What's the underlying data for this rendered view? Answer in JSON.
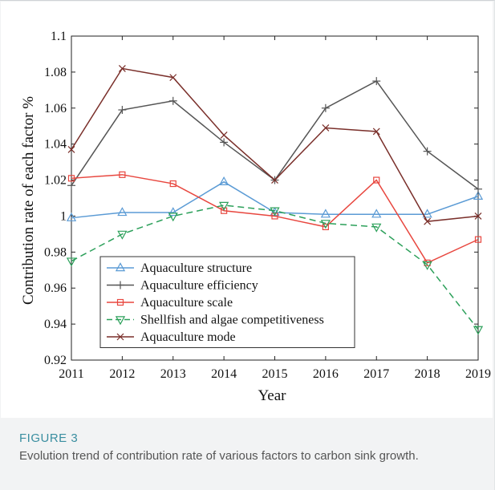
{
  "figure": {
    "label": "FIGURE 3",
    "caption": "Evolution trend of contribution rate of various factors to carbon sink growth."
  },
  "chart_data": {
    "type": "line",
    "xlabel": "Year",
    "ylabel": "Contribution rate of each factor %",
    "x": [
      2011,
      2012,
      2013,
      2014,
      2015,
      2016,
      2017,
      2018,
      2019
    ],
    "xlim": [
      2011,
      2019
    ],
    "ylim": [
      0.92,
      1.1
    ],
    "yticks": [
      0.92,
      0.94,
      0.96,
      0.98,
      1,
      1.02,
      1.04,
      1.06,
      1.08,
      1.1
    ],
    "ytick_labels": [
      "0.92",
      "0.94",
      "0.96",
      "0.98",
      "1",
      "1.02",
      "1.04",
      "1.06",
      "1.08",
      "1.1"
    ],
    "xtick_labels": [
      "2011",
      "2012",
      "2013",
      "2014",
      "2015",
      "2016",
      "2017",
      "2018",
      "2019"
    ],
    "grid": false,
    "legend_position": "bottom-left",
    "series": [
      {
        "name": "Aquaculture structure",
        "color": "#5b9bd5",
        "marker": "triangle-up",
        "dash": "solid",
        "values": [
          0.999,
          1.002,
          1.002,
          1.019,
          1.002,
          1.001,
          1.001,
          1.001,
          1.011
        ]
      },
      {
        "name": "Aquaculture efficiency",
        "color": "#555555",
        "marker": "plus",
        "dash": "solid",
        "values": [
          1.017,
          1.059,
          1.064,
          1.041,
          1.02,
          1.06,
          1.075,
          1.036,
          1.015
        ]
      },
      {
        "name": "Aquaculture scale",
        "color": "#e8473f",
        "marker": "square",
        "dash": "solid",
        "values": [
          1.021,
          1.023,
          1.018,
          1.003,
          1.0,
          0.994,
          1.02,
          0.974,
          0.987
        ]
      },
      {
        "name": "Shellfish and algae competitiveness",
        "color": "#2ca05a",
        "marker": "triangle-down",
        "dash": "dashed",
        "values": [
          0.975,
          0.99,
          1.0,
          1.006,
          1.003,
          0.996,
          0.994,
          0.973,
          0.937
        ]
      },
      {
        "name": "Aquaculture mode",
        "color": "#7a2f2a",
        "marker": "x",
        "dash": "solid",
        "values": [
          1.037,
          1.082,
          1.077,
          1.045,
          1.02,
          1.049,
          1.047,
          0.997,
          1.0
        ]
      }
    ]
  }
}
